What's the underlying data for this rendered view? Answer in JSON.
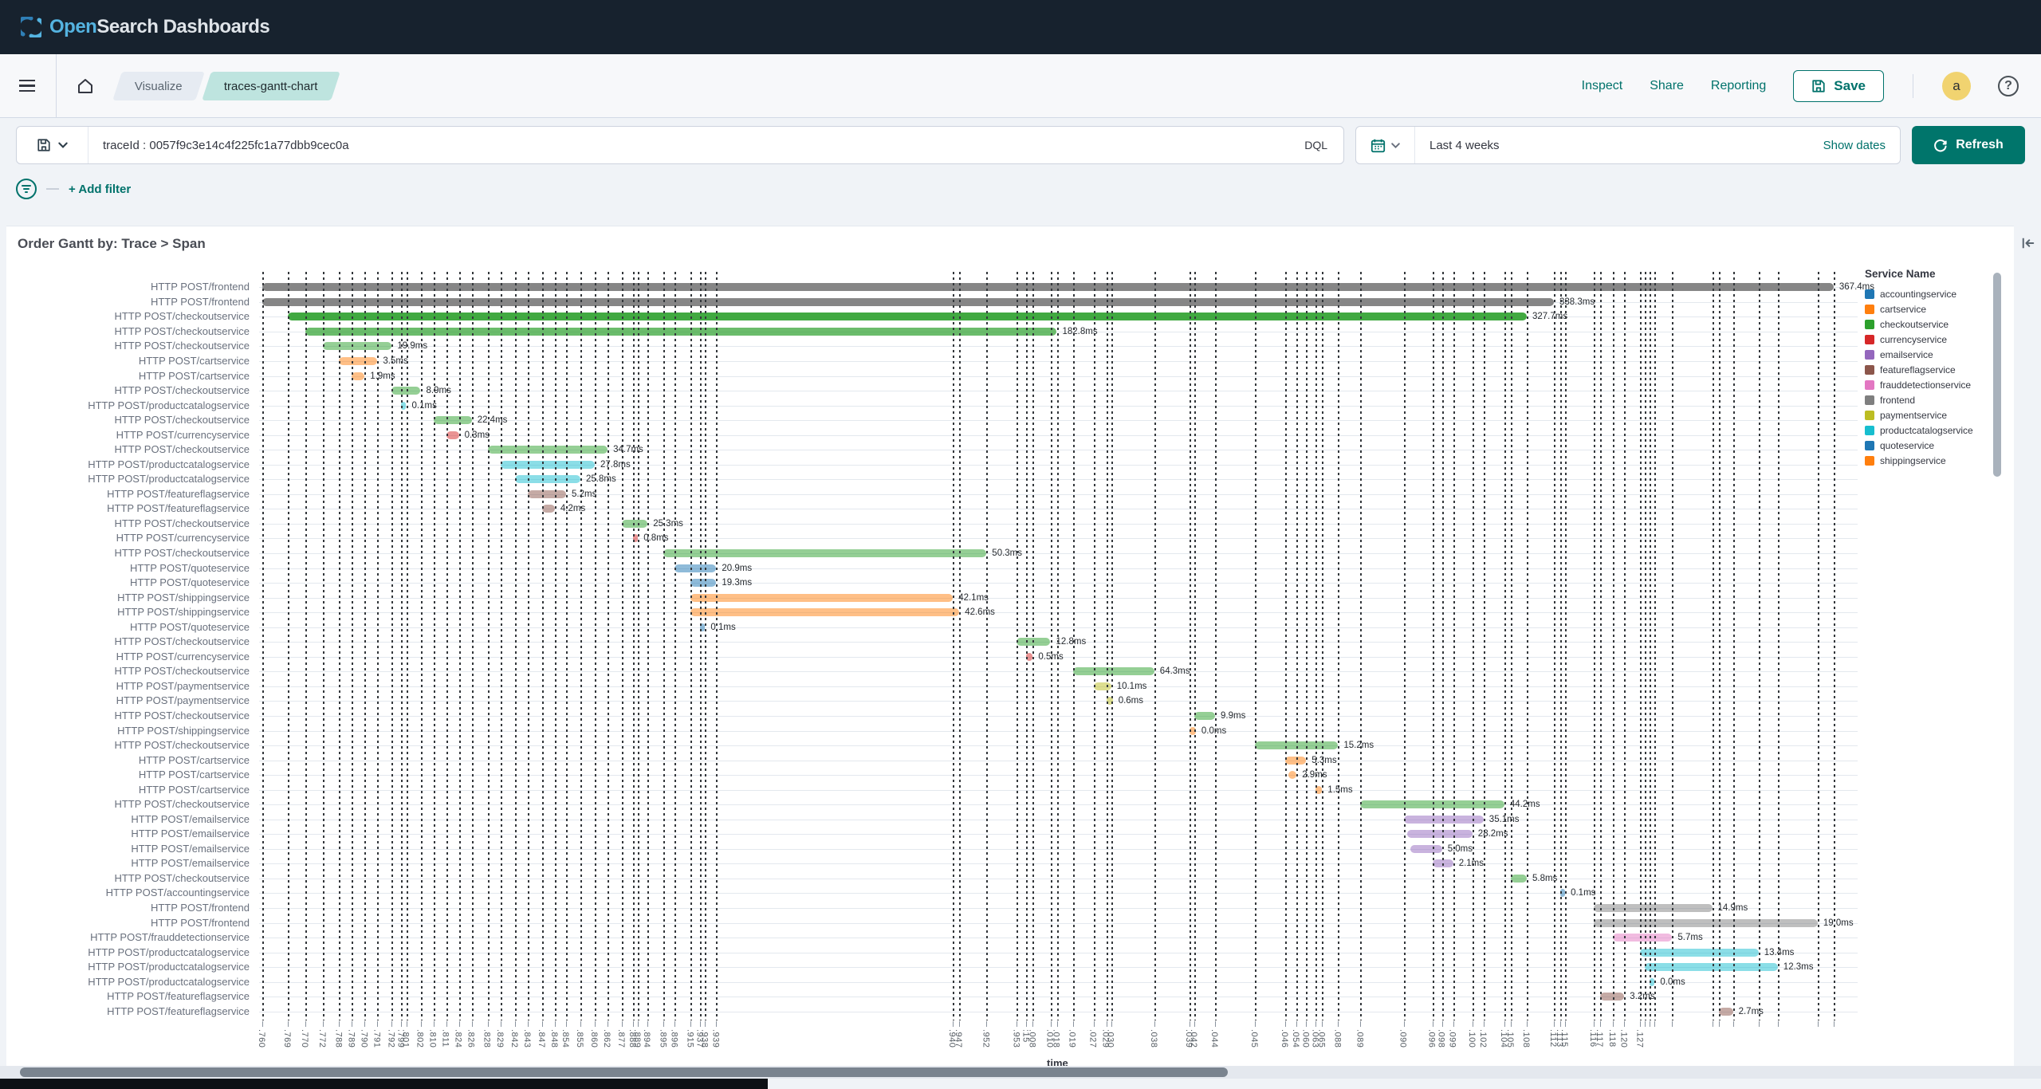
{
  "header": {
    "logo_open": "Open",
    "logo_rest": "Search Dashboards"
  },
  "nav": {
    "breadcrumbs": [
      "Visualize",
      "traces-gantt-chart"
    ],
    "actions": {
      "inspect": "Inspect",
      "share": "Share",
      "reporting": "Reporting"
    },
    "save_label": "Save",
    "avatar_letter": "a",
    "help_label": "?"
  },
  "search": {
    "query": "traceId : 0057f9c3e14c4f225fc1a77dbb9cec0a",
    "language": "DQL",
    "time_range": "Last 4 weeks",
    "show_dates_label": "Show dates",
    "refresh_label": "Refresh",
    "add_filter_label": "+ Add filter"
  },
  "panel": {
    "title": "Order Gantt by: Trace > Span"
  },
  "accent_color": "#00726b",
  "chart_data": {
    "type": "gantt",
    "title": "Order Gantt by: Trace > Span",
    "xlabel": "time",
    "legend_position": "right",
    "legend_title": "Service Name",
    "legend": [
      {
        "name": "accountingservice",
        "color": "#1f77b4"
      },
      {
        "name": "cartservice",
        "color": "#ff7f0e"
      },
      {
        "name": "checkoutservice",
        "color": "#2ca02c"
      },
      {
        "name": "currencyservice",
        "color": "#d62728"
      },
      {
        "name": "emailservice",
        "color": "#9467bd"
      },
      {
        "name": "featureflagservice",
        "color": "#8c564b"
      },
      {
        "name": "frauddetectionservice",
        "color": "#e377c2"
      },
      {
        "name": "frontend",
        "color": "#7f7f7f"
      },
      {
        "name": "paymentservice",
        "color": "#bcbd22"
      },
      {
        "name": "productcatalogservice",
        "color": "#17becf"
      },
      {
        "name": "quoteservice",
        "color": "#1f77b4"
      },
      {
        "name": "shippingservice",
        "color": "#ff7f0e"
      }
    ],
    "x_ticks": [
      ".760",
      ".769",
      ".770",
      ".772",
      ".788",
      ".789",
      ".790",
      ".791",
      ".792",
      ".799",
      ".801",
      ".802",
      ".810",
      ".811",
      ".824",
      ".826",
      ".828",
      ".829",
      ".842",
      ".843",
      ".847",
      ".848",
      ".854",
      ".855",
      ".860",
      ".862",
      ".877",
      ".888",
      ".889",
      ".894",
      ".895",
      ".896",
      ".915",
      ".937",
      ".938",
      ".939",
      ".940",
      ".947",
      ".952",
      ".953",
      ":15",
      ".008",
      ".010",
      ".018",
      ".019",
      ".027",
      ".029",
      ".030",
      ".038",
      ".039",
      ".042",
      ".044",
      ".045",
      ".046",
      ".054",
      ".060",
      ".063",
      ".065",
      ".088",
      ".089",
      ".090",
      ".096",
      ".098",
      ".099",
      ".100",
      ".102",
      ".104",
      ".105",
      ".108",
      ".112",
      ".113",
      ".115",
      ".116",
      ".117",
      ".118",
      ".120",
      ".127"
    ],
    "rows": [
      {
        "label": "HTTP POST/frontend",
        "service": "frontend",
        "start_pct": 0.2,
        "end_pct": 98.5,
        "duration": "367.4ms"
      },
      {
        "label": "HTTP POST/frontend",
        "service": "frontend",
        "start_pct": 0.2,
        "end_pct": 81.0,
        "duration": "338.3ms"
      },
      {
        "label": "HTTP POST/checkoutservice",
        "service": "checkoutservice",
        "start_pct": 1.8,
        "end_pct": 79.3,
        "duration": "327.7ms"
      },
      {
        "label": "HTTP POST/checkoutservice",
        "service": "checkoutservice",
        "start_pct": 2.9,
        "end_pct": 49.9,
        "duration": "182.8ms"
      },
      {
        "label": "HTTP POST/checkoutservice",
        "service": "checkoutservice",
        "start_pct": 4.0,
        "end_pct": 8.3,
        "duration": "19.9ms"
      },
      {
        "label": "HTTP POST/cartservice",
        "service": "cartservice",
        "start_pct": 5.0,
        "end_pct": 7.4,
        "duration": "3.5ms"
      },
      {
        "label": "HTTP POST/cartservice",
        "service": "cartservice",
        "start_pct": 5.8,
        "end_pct": 6.6,
        "duration": "1.9ms"
      },
      {
        "label": "HTTP POST/checkoutservice",
        "service": "checkoutservice",
        "start_pct": 8.3,
        "end_pct": 10.1,
        "duration": "8.9ms"
      },
      {
        "label": "HTTP POST/productcatalogservice",
        "service": "productcatalogservice",
        "start_pct": 8.9,
        "end_pct": 9.2,
        "duration": "0.1ms"
      },
      {
        "label": "HTTP POST/checkoutservice",
        "service": "checkoutservice",
        "start_pct": 10.9,
        "end_pct": 13.3,
        "duration": "22.4ms"
      },
      {
        "label": "HTTP POST/currencyservice",
        "service": "currencyservice",
        "start_pct": 11.7,
        "end_pct": 12.5,
        "duration": "0.3ms"
      },
      {
        "label": "HTTP POST/checkoutservice",
        "service": "checkoutservice",
        "start_pct": 14.3,
        "end_pct": 21.8,
        "duration": "34.7ms"
      },
      {
        "label": "HTTP POST/productcatalogservice",
        "service": "productcatalogservice",
        "start_pct": 15.1,
        "end_pct": 21.0,
        "duration": "27.8ms"
      },
      {
        "label": "HTTP POST/productcatalogservice",
        "service": "productcatalogservice",
        "start_pct": 16.0,
        "end_pct": 20.1,
        "duration": "25.8ms"
      },
      {
        "label": "HTTP POST/featureflagservice",
        "service": "featureflagservice",
        "start_pct": 16.8,
        "end_pct": 19.2,
        "duration": "5.2ms"
      },
      {
        "label": "HTTP POST/featureflagservice",
        "service": "featureflagservice",
        "start_pct": 17.7,
        "end_pct": 18.5,
        "duration": "4.2ms"
      },
      {
        "label": "HTTP POST/checkoutservice",
        "service": "checkoutservice",
        "start_pct": 22.7,
        "end_pct": 24.3,
        "duration": "25.3ms"
      },
      {
        "label": "HTTP POST/currencyservice",
        "service": "currencyservice",
        "start_pct": 23.4,
        "end_pct": 23.7,
        "duration": "0.8ms"
      },
      {
        "label": "HTTP POST/checkoutservice",
        "service": "checkoutservice",
        "start_pct": 25.3,
        "end_pct": 45.5,
        "duration": "50.3ms"
      },
      {
        "label": "HTTP POST/quoteservice",
        "service": "quoteservice",
        "start_pct": 26.0,
        "end_pct": 28.6,
        "duration": "20.9ms"
      },
      {
        "label": "HTTP POST/quoteservice",
        "service": "quoteservice",
        "start_pct": 27.0,
        "end_pct": 28.6,
        "duration": "19.3ms"
      },
      {
        "label": "HTTP POST/shippingservice",
        "service": "shippingservice",
        "start_pct": 27.0,
        "end_pct": 43.4,
        "duration": "42.1ms"
      },
      {
        "label": "HTTP POST/shippingservice",
        "service": "shippingservice",
        "start_pct": 27.0,
        "end_pct": 43.8,
        "duration": "42.6ms"
      },
      {
        "label": "HTTP POST/quoteservice",
        "service": "quoteservice",
        "start_pct": 27.6,
        "end_pct": 27.9,
        "duration": "0.1ms"
      },
      {
        "label": "HTTP POST/checkoutservice",
        "service": "checkoutservice",
        "start_pct": 47.4,
        "end_pct": 49.5,
        "duration": "12.8ms"
      },
      {
        "label": "HTTP POST/currencyservice",
        "service": "currencyservice",
        "start_pct": 48.0,
        "end_pct": 48.4,
        "duration": "0.5ms"
      },
      {
        "label": "HTTP POST/checkoutservice",
        "service": "checkoutservice",
        "start_pct": 50.9,
        "end_pct": 56.0,
        "duration": "64.3ms"
      },
      {
        "label": "HTTP POST/paymentservice",
        "service": "paymentservice",
        "start_pct": 52.2,
        "end_pct": 53.3,
        "duration": "10.1ms"
      },
      {
        "label": "HTTP POST/paymentservice",
        "service": "paymentservice",
        "start_pct": 53.0,
        "end_pct": 53.4,
        "duration": "0.6ms"
      },
      {
        "label": "HTTP POST/checkoutservice",
        "service": "checkoutservice",
        "start_pct": 58.5,
        "end_pct": 59.8,
        "duration": "9.9ms"
      },
      {
        "label": "HTTP POST/shippingservice",
        "service": "shippingservice",
        "start_pct": 58.2,
        "end_pct": 58.6,
        "duration": "0.0ms"
      },
      {
        "label": "HTTP POST/checkoutservice",
        "service": "checkoutservice",
        "start_pct": 62.3,
        "end_pct": 67.5,
        "duration": "15.2ms"
      },
      {
        "label": "HTTP POST/cartservice",
        "service": "cartservice",
        "start_pct": 64.2,
        "end_pct": 65.5,
        "duration": "5.3ms"
      },
      {
        "label": "HTTP POST/cartservice",
        "service": "cartservice",
        "start_pct": 64.4,
        "end_pct": 64.9,
        "duration": "2.9ms"
      },
      {
        "label": "HTTP POST/cartservice",
        "service": "cartservice",
        "start_pct": 66.1,
        "end_pct": 66.5,
        "duration": "1.5ms"
      },
      {
        "label": "HTTP POST/checkoutservice",
        "service": "checkoutservice",
        "start_pct": 68.9,
        "end_pct": 77.9,
        "duration": "44.2ms"
      },
      {
        "label": "HTTP POST/emailservice",
        "service": "emailservice",
        "start_pct": 71.6,
        "end_pct": 76.6,
        "duration": "35.1ms"
      },
      {
        "label": "HTTP POST/emailservice",
        "service": "emailservice",
        "start_pct": 71.8,
        "end_pct": 75.9,
        "duration": "28.2ms"
      },
      {
        "label": "HTTP POST/emailservice",
        "service": "emailservice",
        "start_pct": 72.0,
        "end_pct": 74.0,
        "duration": "5.0ms"
      },
      {
        "label": "HTTP POST/emailservice",
        "service": "emailservice",
        "start_pct": 73.4,
        "end_pct": 74.7,
        "duration": "2.1ms"
      },
      {
        "label": "HTTP POST/checkoutservice",
        "service": "checkoutservice",
        "start_pct": 78.3,
        "end_pct": 79.3,
        "duration": "5.8ms"
      },
      {
        "label": "HTTP POST/accountingservice",
        "service": "accountingservice",
        "start_pct": 81.4,
        "end_pct": 81.7,
        "duration": "0.1ms"
      },
      {
        "label": "HTTP POST/frontend",
        "service": "frontend",
        "start_pct": 83.5,
        "end_pct": 90.9,
        "duration": "14.9ms"
      },
      {
        "label": "HTTP POST/frontend",
        "service": "frontend",
        "start_pct": 83.5,
        "end_pct": 97.5,
        "duration": "19.0ms"
      },
      {
        "label": "HTTP POST/frauddetectionservice",
        "service": "frauddetectionservice",
        "start_pct": 84.7,
        "end_pct": 88.4,
        "duration": "5.7ms"
      },
      {
        "label": "HTTP POST/productcatalogservice",
        "service": "productcatalogservice",
        "start_pct": 86.4,
        "end_pct": 93.8,
        "duration": "13.4ms"
      },
      {
        "label": "HTTP POST/productcatalogservice",
        "service": "productcatalogservice",
        "start_pct": 86.7,
        "end_pct": 95.0,
        "duration": "12.3ms"
      },
      {
        "label": "HTTP POST/productcatalogservice",
        "service": "productcatalogservice",
        "start_pct": 87.0,
        "end_pct": 87.3,
        "duration": "0.0ms"
      },
      {
        "label": "HTTP POST/featureflagservice",
        "service": "featureflagservice",
        "start_pct": 83.9,
        "end_pct": 85.4,
        "duration": "3.2ms"
      },
      {
        "label": "HTTP POST/featureflagservice",
        "service": "featureflagservice",
        "start_pct": 91.3,
        "end_pct": 92.2,
        "duration": "2.7ms"
      }
    ]
  }
}
